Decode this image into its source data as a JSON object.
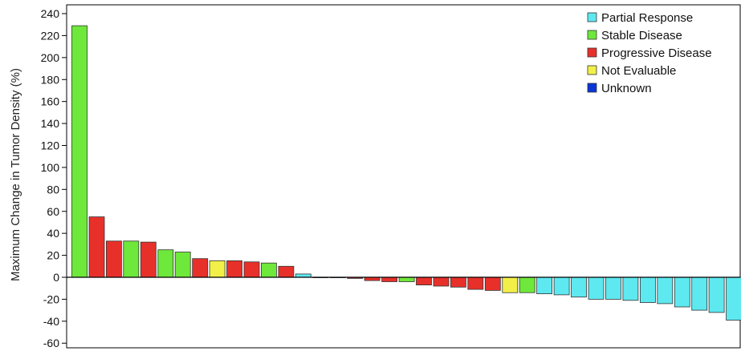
{
  "chart_data": {
    "type": "bar",
    "title": "",
    "xlabel": "",
    "ylabel": "Maximum Change in Tumor Density (%)",
    "ylim": [
      -65,
      245
    ],
    "yticks": [
      240,
      220,
      200,
      180,
      160,
      140,
      120,
      100,
      80,
      60,
      40,
      20,
      0,
      -20,
      -40,
      -60
    ],
    "grid": false,
    "legend_position": "top-right",
    "legend": [
      {
        "name": "Partial Response",
        "color": "#5ee8f0"
      },
      {
        "name": "Stable Disease",
        "color": "#6ee83a"
      },
      {
        "name": "Progressive Disease",
        "color": "#e8302a"
      },
      {
        "name": "Not Evaluable",
        "color": "#f2f048"
      },
      {
        "name": "Unknown",
        "color": "#0a35d8"
      }
    ],
    "bars": [
      {
        "value": 229,
        "category": "Stable Disease"
      },
      {
        "value": 55,
        "category": "Progressive Disease"
      },
      {
        "value": 33,
        "category": "Progressive Disease"
      },
      {
        "value": 33,
        "category": "Stable Disease"
      },
      {
        "value": 32,
        "category": "Progressive Disease"
      },
      {
        "value": 25,
        "category": "Stable Disease"
      },
      {
        "value": 23,
        "category": "Stable Disease"
      },
      {
        "value": 17,
        "category": "Progressive Disease"
      },
      {
        "value": 15,
        "category": "Not Evaluable"
      },
      {
        "value": 15,
        "category": "Progressive Disease"
      },
      {
        "value": 14,
        "category": "Progressive Disease"
      },
      {
        "value": 13,
        "category": "Stable Disease"
      },
      {
        "value": 10,
        "category": "Progressive Disease"
      },
      {
        "value": 3,
        "category": "Partial Response"
      },
      {
        "value": 0,
        "category": "Stable Disease"
      },
      {
        "value": 0,
        "category": "Stable Disease"
      },
      {
        "value": -1,
        "category": "Progressive Disease"
      },
      {
        "value": -3,
        "category": "Progressive Disease"
      },
      {
        "value": -4,
        "category": "Progressive Disease"
      },
      {
        "value": -4,
        "category": "Stable Disease"
      },
      {
        "value": -7,
        "category": "Progressive Disease"
      },
      {
        "value": -8,
        "category": "Progressive Disease"
      },
      {
        "value": -9,
        "category": "Progressive Disease"
      },
      {
        "value": -11,
        "category": "Progressive Disease"
      },
      {
        "value": -12,
        "category": "Progressive Disease"
      },
      {
        "value": -14,
        "category": "Not Evaluable"
      },
      {
        "value": -14,
        "category": "Stable Disease"
      },
      {
        "value": -15,
        "category": "Partial Response"
      },
      {
        "value": -16,
        "category": "Partial Response"
      },
      {
        "value": -18,
        "category": "Partial Response"
      },
      {
        "value": -20,
        "category": "Partial Response"
      },
      {
        "value": -20,
        "category": "Partial Response"
      },
      {
        "value": -21,
        "category": "Partial Response"
      },
      {
        "value": -23,
        "category": "Partial Response"
      },
      {
        "value": -24,
        "category": "Partial Response"
      },
      {
        "value": -27,
        "category": "Partial Response"
      },
      {
        "value": -30,
        "category": "Partial Response"
      },
      {
        "value": -32,
        "category": "Partial Response"
      },
      {
        "value": -39,
        "category": "Partial Response"
      }
    ]
  }
}
